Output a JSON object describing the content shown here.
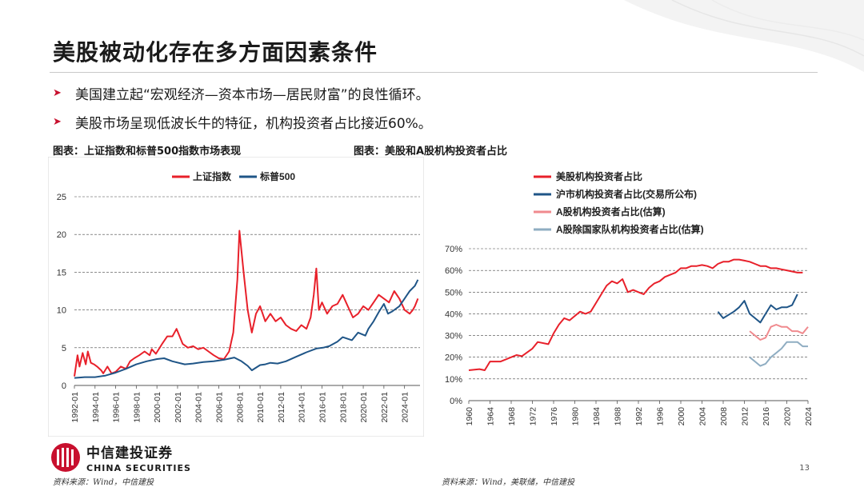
{
  "title": "美股被动化存在多方面因素条件",
  "bullets": [
    "美国建立起“宏观经济—资本市场—居民财富”的良性循环。",
    "美股市场呈现低波长牛的特征，机构投资者占比接近60%。"
  ],
  "captions": {
    "left": "图表：上证指数和标普500指数市场表现",
    "right": "图表：美股和A股机构投资者占比"
  },
  "sources": {
    "left": "资料来源：Wind，中信建投",
    "right": "资料来源：Wind，美联储，中信建投"
  },
  "page_number": "13",
  "logo": {
    "cn": "中信建投证券",
    "en": "CHINA SECURITIES",
    "color": "#c8102e"
  },
  "icons": {
    "bullet": "arrow-right-icon"
  },
  "chart_data": [
    {
      "type": "line",
      "title": "",
      "xlabel": "",
      "ylabel": "",
      "ylim": [
        0,
        25
      ],
      "yticks": [
        0,
        5,
        10,
        15,
        20,
        25
      ],
      "xlim": [
        1992,
        2025.5
      ],
      "xtick_labels": [
        "1992-01",
        "1994-01",
        "1996-01",
        "1998-01",
        "2000-01",
        "2002-01",
        "2004-01",
        "2006-01",
        "2008-01",
        "2010-01",
        "2012-01",
        "2014-01",
        "2016-01",
        "2018-01",
        "2020-01",
        "2022-01",
        "2024-01"
      ],
      "grid": "horizontal-dashed",
      "legend_position": "top",
      "series": [
        {
          "name": "上证指数",
          "color": "#e8202a",
          "x": [
            1992.0,
            1992.3,
            1992.5,
            1992.8,
            1993.1,
            1993.3,
            1993.6,
            1993.9,
            1994.2,
            1994.6,
            1994.8,
            1995.2,
            1995.6,
            1996.0,
            1996.5,
            1997.0,
            1997.4,
            1997.8,
            1998.3,
            1998.8,
            1999.3,
            1999.5,
            1999.9,
            2000.5,
            2001.0,
            2001.5,
            2001.9,
            2002.5,
            2003.0,
            2003.5,
            2004.0,
            2004.5,
            2005.0,
            2005.5,
            2006.0,
            2006.5,
            2007.0,
            2007.4,
            2007.8,
            2008.0,
            2008.4,
            2008.8,
            2009.2,
            2009.6,
            2010.0,
            2010.5,
            2011.0,
            2011.5,
            2012.0,
            2012.5,
            2013.0,
            2013.5,
            2014.0,
            2014.5,
            2014.9,
            2015.2,
            2015.45,
            2015.7,
            2016.0,
            2016.5,
            2017.0,
            2017.5,
            2018.0,
            2018.5,
            2019.0,
            2019.5,
            2020.0,
            2020.5,
            2021.0,
            2021.5,
            2022.0,
            2022.5,
            2023.0,
            2023.5,
            2024.0,
            2024.5,
            2024.8,
            2025.0,
            2025.3
          ],
          "y": [
            1.2,
            4.0,
            2.5,
            4.3,
            2.8,
            4.5,
            3.0,
            2.8,
            2.5,
            2.0,
            1.6,
            2.5,
            1.6,
            1.8,
            2.5,
            2.2,
            3.2,
            3.6,
            4.0,
            4.5,
            4.0,
            4.8,
            4.2,
            5.5,
            6.5,
            6.5,
            7.5,
            5.5,
            5.0,
            5.2,
            4.8,
            5.0,
            4.5,
            4.0,
            3.6,
            3.5,
            4.5,
            7.0,
            14.0,
            20.5,
            15.0,
            10.0,
            7.0,
            9.5,
            10.5,
            8.5,
            9.5,
            8.5,
            9.0,
            8.0,
            7.5,
            7.2,
            8.0,
            7.5,
            9.0,
            12.0,
            15.5,
            10.0,
            11.0,
            9.5,
            10.5,
            10.8,
            12.0,
            10.5,
            9.0,
            9.5,
            10.5,
            10.0,
            11.0,
            12.0,
            11.5,
            11.0,
            12.5,
            11.5,
            10.0,
            9.5,
            10.0,
            10.5,
            11.5
          ]
        },
        {
          "name": "标普500",
          "color": "#1f5587",
          "x": [
            1992.0,
            1993.0,
            1994.0,
            1995.0,
            1996.0,
            1997.0,
            1998.0,
            1999.0,
            2000.0,
            2000.7,
            2001.5,
            2002.7,
            2003.5,
            2004.5,
            2005.5,
            2006.5,
            2007.5,
            2008.2,
            2008.8,
            2009.2,
            2010.0,
            2010.5,
            2011.0,
            2011.7,
            2012.5,
            2013.5,
            2014.5,
            2015.5,
            2016.1,
            2016.7,
            2017.5,
            2018.0,
            2018.9,
            2019.5,
            2020.2,
            2020.5,
            2021.0,
            2021.5,
            2022.0,
            2022.4,
            2022.8,
            2023.5,
            2024.0,
            2024.5,
            2025.0,
            2025.3
          ],
          "y": [
            1.0,
            1.1,
            1.1,
            1.3,
            1.7,
            2.2,
            2.8,
            3.2,
            3.5,
            3.6,
            3.2,
            2.8,
            2.9,
            3.1,
            3.2,
            3.4,
            3.7,
            3.2,
            2.6,
            2.0,
            2.7,
            2.8,
            3.0,
            2.9,
            3.2,
            3.8,
            4.4,
            4.9,
            5.0,
            5.2,
            5.8,
            6.4,
            6.0,
            7.0,
            6.6,
            7.5,
            8.5,
            9.7,
            10.8,
            9.5,
            9.8,
            10.5,
            11.5,
            12.5,
            13.2,
            14.0
          ]
        }
      ]
    },
    {
      "type": "line",
      "title": "",
      "xlabel": "",
      "ylabel": "",
      "ylim": [
        0,
        70
      ],
      "yticks": [
        "0%",
        "10%",
        "20%",
        "30%",
        "40%",
        "50%",
        "60%",
        "70%"
      ],
      "xlim": [
        1960,
        2024
      ],
      "xtick_labels": [
        "1960",
        "1964",
        "1968",
        "1972",
        "1976",
        "1980",
        "1984",
        "1988",
        "1992",
        "1996",
        "2000",
        "2004",
        "2008",
        "2012",
        "2016",
        "2020",
        "2024"
      ],
      "grid": "horizontal-dashed",
      "legend_position": "top",
      "series": [
        {
          "name": "美股机构投资者占比",
          "color": "#e8202a",
          "x": [
            1960,
            1962,
            1963,
            1964,
            1966,
            1968,
            1969,
            1970,
            1972,
            1973,
            1975,
            1976,
            1977,
            1978,
            1979,
            1980,
            1981,
            1982,
            1983,
            1984,
            1985,
            1986,
            1987,
            1988,
            1989,
            1990,
            1991,
            1992,
            1993,
            1994,
            1995,
            1996,
            1997,
            1998,
            1999,
            2000,
            2001,
            2002,
            2003,
            2004,
            2005,
            2006,
            2007,
            2008,
            2009,
            2010,
            2011,
            2012,
            2013,
            2014,
            2015,
            2016,
            2017,
            2018,
            2019,
            2020,
            2021,
            2022,
            2023
          ],
          "y": [
            14,
            14.5,
            14,
            18,
            18,
            20,
            21,
            20.5,
            24,
            27,
            26,
            31,
            35,
            38,
            37,
            39,
            41,
            40,
            41,
            45,
            49,
            53,
            55,
            54,
            56,
            50,
            51,
            50,
            49,
            52,
            54,
            55,
            57,
            58,
            59,
            61,
            61,
            62,
            62,
            62.5,
            62,
            61,
            63,
            64,
            64,
            65,
            65,
            64.5,
            64,
            63,
            62,
            62,
            61,
            61,
            60.5,
            60,
            59.5,
            59,
            59
          ]
        },
        {
          "name": "沪市机构投资者占比(交易所公布)",
          "color": "#1f5587",
          "x": [
            2007,
            2008,
            2010,
            2011,
            2012,
            2013,
            2014,
            2015,
            2016,
            2017,
            2018,
            2019,
            2020,
            2021,
            2022
          ],
          "y": [
            41,
            38,
            41,
            43,
            46,
            40,
            38,
            36,
            40,
            44,
            42,
            43,
            43,
            44,
            49
          ]
        },
        {
          "name": "A股机构投资者占比(估算)",
          "color": "#f08a8e",
          "x": [
            2013,
            2014,
            2015,
            2016,
            2017,
            2018,
            2019,
            2020,
            2021,
            2022,
            2023,
            2024
          ],
          "y": [
            32,
            30,
            28,
            29,
            34,
            35,
            34,
            34,
            32,
            32,
            31,
            34
          ]
        },
        {
          "name": "A股除国家队机构投资者占比(估算)",
          "color": "#8fadc2",
          "x": [
            2013,
            2014,
            2015,
            2016,
            2017,
            2018,
            2019,
            2020,
            2021,
            2022,
            2023,
            2024
          ],
          "y": [
            20,
            18,
            16,
            17,
            20,
            22,
            24,
            27,
            27,
            27,
            25,
            25
          ]
        }
      ]
    }
  ]
}
